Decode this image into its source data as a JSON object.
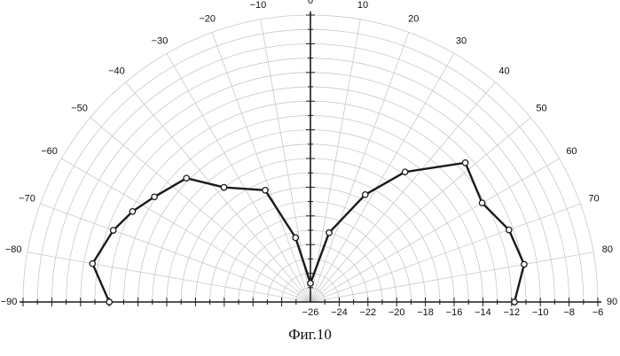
{
  "caption": "Фиг.10",
  "chart_data": {
    "type": "polar",
    "title": "",
    "angle_ticks": [
      "-90",
      "-80",
      "-70",
      "-60",
      "-50",
      "-40",
      "-30",
      "-20",
      "-10",
      "0",
      "10",
      "20",
      "30",
      "40",
      "50",
      "60",
      "70",
      "80",
      "90"
    ],
    "angle_range": [
      -90,
      90
    ],
    "radial_ticks": [
      "-26",
      "-24",
      "-22",
      "-20",
      "-18",
      "-16",
      "-14",
      "-12",
      "-10",
      "-8",
      "-6"
    ],
    "radial_range": [
      -26,
      -6
    ],
    "grid": true,
    "series": [
      {
        "color": "#1a1a1a",
        "points": [
          {
            "angle": -90,
            "value": -12.0
          },
          {
            "angle": -80,
            "value": -10.6
          },
          {
            "angle": -70,
            "value": -11.4
          },
          {
            "angle": -63,
            "value": -12.1
          },
          {
            "angle": -56,
            "value": -12.9
          },
          {
            "angle": -45,
            "value": -13.8
          },
          {
            "angle": -37,
            "value": -16.0
          },
          {
            "angle": -22,
            "value": -17.6
          },
          {
            "angle": -13,
            "value": -21.4
          },
          {
            "angle": 0,
            "value": -24.7
          },
          {
            "angle": 15,
            "value": -21.0
          },
          {
            "angle": 27,
            "value": -17.6
          },
          {
            "angle": 36,
            "value": -14.8
          },
          {
            "angle": 48,
            "value": -11.5
          },
          {
            "angle": 60,
            "value": -12.2
          },
          {
            "angle": 70,
            "value": -11.3
          },
          {
            "angle": 80,
            "value": -10.9
          },
          {
            "angle": 90,
            "value": -11.8
          }
        ]
      }
    ]
  }
}
